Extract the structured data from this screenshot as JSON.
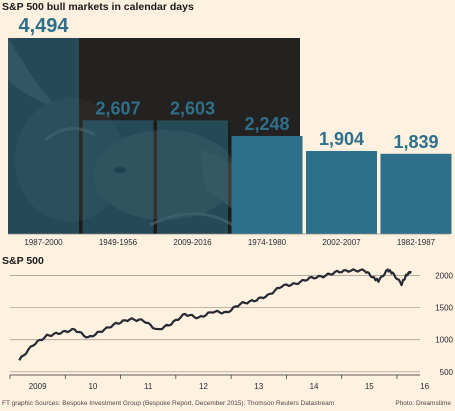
{
  "header": {
    "title": "S&P 500 bull markets in calendar days"
  },
  "line_section": {
    "title": "S&P 500"
  },
  "footer": {
    "source": "FT graphic   Sources: Bespoke Investment Group (Bespoke Report, December 2015); Thomson Reuters Datastream",
    "photo_credit": "Photo: Dreamstime"
  },
  "colors": {
    "bar": "#2e6f8a",
    "bar_label": "#2e6f8a",
    "line": "#262a33",
    "background": "#fff1e0",
    "photo_dark": "#1e1e1c"
  },
  "chart_data": [
    {
      "type": "bar",
      "title": "S&P 500 bull markets in calendar days",
      "categories": [
        "1987-2000",
        "1949-1956",
        "2009-2016",
        "1974-1980",
        "2002-2007",
        "1982-1987"
      ],
      "values": [
        4494,
        2607,
        2603,
        2248,
        1904,
        1839
      ],
      "value_labels": [
        "4,494",
        "2,607",
        "2,603",
        "2,248",
        "1,904",
        "1,839"
      ],
      "ylim": [
        0,
        4494
      ],
      "grid": false,
      "background_image": "bull-photo"
    },
    {
      "type": "line",
      "title": "S&P 500",
      "series": [
        {
          "x": [
            "2009-03",
            "2009-06",
            "2009-09",
            "2009-12",
            "2010-03",
            "2010-06",
            "2010-09",
            "2010-12",
            "2011-03",
            "2011-06",
            "2011-09",
            "2011-12",
            "2012-03",
            "2012-06",
            "2012-09",
            "2012-12",
            "2013-03",
            "2013-06",
            "2013-09",
            "2013-12",
            "2014-03",
            "2014-06",
            "2014-09",
            "2014-12",
            "2015-03",
            "2015-06",
            "2015-08",
            "2015-09",
            "2015-11",
            "2015-12",
            "2016-02",
            "2016-03",
            "2016-04"
          ],
          "values": [
            680,
            920,
            1060,
            1110,
            1160,
            1030,
            1140,
            1250,
            1320,
            1300,
            1150,
            1250,
            1400,
            1340,
            1440,
            1420,
            1560,
            1610,
            1690,
            1840,
            1870,
            1960,
            1990,
            2060,
            2080,
            2080,
            1960,
            1920,
            2090,
            2040,
            1870,
            2000,
            2070
          ]
        }
      ],
      "x_ticks": [
        "2009",
        "10",
        "11",
        "12",
        "13",
        "14",
        "15",
        "16"
      ],
      "y_ticks": [
        500,
        1000,
        1500,
        2000
      ],
      "ylim": [
        450,
        2150
      ],
      "grid": true
    }
  ]
}
